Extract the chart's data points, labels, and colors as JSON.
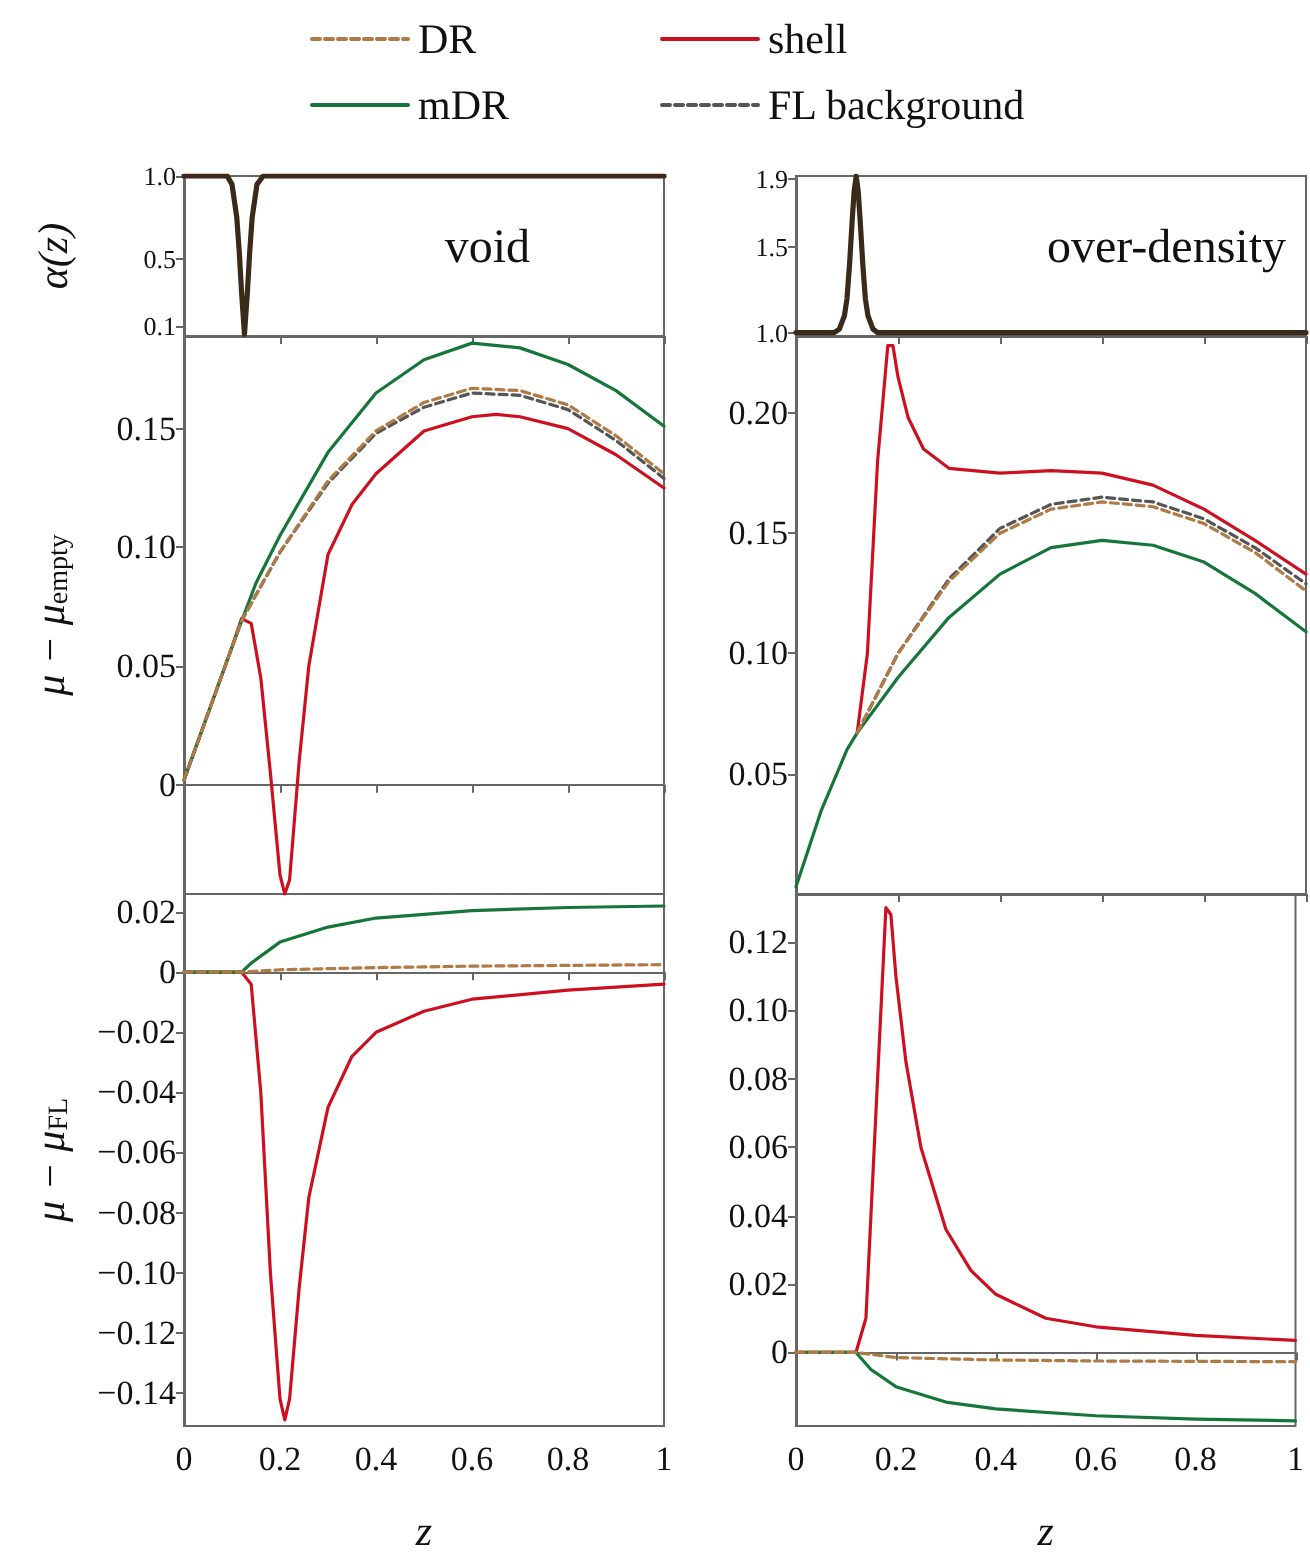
{
  "chart_data": [
    {
      "type": "line",
      "ylabel": "α(z)",
      "annotations": [
        "void"
      ],
      "tick_labels": "y",
      "xlim": [
        0,
        1
      ],
      "xticks": [
        0,
        0.2,
        0.4,
        0.6,
        0.8,
        1
      ],
      "ylim": [
        0.04,
        1
      ],
      "yticks": [
        0.1,
        0.5,
        {
          "value": 1,
          "label": "1.0"
        }
      ],
      "series": [
        {
          "color": "#3b2a1a",
          "x": [
            0,
            0.09,
            0.1,
            0.11,
            0.115,
            0.12,
            0.126,
            0.132,
            0.137,
            0.142,
            0.152,
            0.165,
            1
          ],
          "values": [
            1,
            1,
            0.95,
            0.75,
            0.55,
            0.3,
            0.05,
            0.3,
            0.55,
            0.75,
            0.95,
            1,
            1
          ]
        }
      ]
    },
    {
      "type": "line",
      "annotations": [
        "over-density"
      ],
      "tick_labels": "y",
      "xlim": [
        0,
        1
      ],
      "xticks": [
        0,
        0.2,
        0.4,
        0.6,
        0.8,
        1
      ],
      "ylim": [
        0.98,
        1.92
      ],
      "yticks": [
        {
          "value": 1,
          "label": "1.0"
        },
        1.5,
        1.9
      ],
      "series": [
        {
          "color": "#3b2a1a",
          "x": [
            0,
            0.075,
            0.085,
            0.095,
            0.1,
            0.105,
            0.11,
            0.114,
            0.118,
            0.122,
            0.126,
            0.131,
            0.136,
            0.141,
            0.151,
            0.16,
            1
          ],
          "values": [
            1,
            1,
            1.02,
            1.1,
            1.2,
            1.4,
            1.65,
            1.83,
            1.92,
            1.83,
            1.65,
            1.4,
            1.2,
            1.1,
            1.02,
            1,
            1
          ]
        }
      ]
    },
    {
      "type": "line",
      "ylabel": "μ − μ$_{empty}$",
      "legend": "top",
      "tick_labels": "y",
      "xlim": [
        0,
        1
      ],
      "xticks": [
        0,
        0.2,
        0.4,
        0.6,
        0.8,
        1
      ],
      "ylim": [
        -0.046,
        0.189
      ],
      "yticks": [
        0,
        0.05,
        {
          "value": 0.1,
          "label": "0.10"
        },
        0.15
      ],
      "series": [
        {
          "name": "DR",
          "color": "#b07a45",
          "line_style": "dashed",
          "x": [
            0,
            0.05,
            0.1,
            0.12,
            0.15,
            0.2,
            0.3,
            0.4,
            0.5,
            0.6,
            0.7,
            0.8,
            0.9,
            1
          ],
          "values": [
            0.002,
            0.03,
            0.058,
            0.069,
            0.08,
            0.098,
            0.128,
            0.149,
            0.161,
            0.167,
            0.166,
            0.16,
            0.147,
            0.131
          ]
        },
        {
          "name": "shell",
          "color": "#cc1020",
          "x": [
            0,
            0.05,
            0.1,
            0.12,
            0.14,
            0.16,
            0.18,
            0.2,
            0.21,
            0.22,
            0.24,
            0.26,
            0.3,
            0.35,
            0.4,
            0.5,
            0.6,
            0.65,
            0.7,
            0.8,
            0.9,
            1
          ],
          "values": [
            0.002,
            0.03,
            0.058,
            0.07,
            0.068,
            0.045,
            0.005,
            -0.038,
            -0.046,
            -0.04,
            0.01,
            0.05,
            0.097,
            0.118,
            0.131,
            0.149,
            0.155,
            0.156,
            0.155,
            0.15,
            0.139,
            0.125
          ]
        },
        {
          "name": "mDR",
          "color": "#16763a",
          "x": [
            0,
            0.05,
            0.1,
            0.12,
            0.15,
            0.2,
            0.3,
            0.4,
            0.5,
            0.6,
            0.7,
            0.8,
            0.9,
            1
          ],
          "values": [
            0.002,
            0.03,
            0.058,
            0.069,
            0.085,
            0.105,
            0.14,
            0.165,
            0.179,
            0.186,
            0.184,
            0.177,
            0.166,
            0.151
          ]
        },
        {
          "name": "FL background",
          "color": "#555555",
          "line_style": "dashed",
          "x": [
            0,
            0.05,
            0.1,
            0.12,
            0.15,
            0.2,
            0.3,
            0.4,
            0.5,
            0.6,
            0.7,
            0.8,
            0.9,
            1
          ],
          "values": [
            0.002,
            0.03,
            0.058,
            0.069,
            0.08,
            0.098,
            0.127,
            0.148,
            0.159,
            0.165,
            0.164,
            0.158,
            0.145,
            0.129
          ]
        }
      ]
    },
    {
      "type": "line",
      "tick_labels": "y",
      "xlim": [
        0,
        1
      ],
      "xticks": [
        0,
        0.2,
        0.4,
        0.6,
        0.8,
        1
      ],
      "ylim": [
        0,
        0.232
      ],
      "yticks": [
        0.05,
        {
          "value": 0.1,
          "label": "0.10"
        },
        0.15,
        {
          "value": 0.2,
          "label": "0.20"
        }
      ],
      "series": [
        {
          "color": "#b07a45",
          "line_style": "dashed",
          "x": [
            0.12,
            0.2,
            0.3,
            0.4,
            0.5,
            0.6,
            0.7,
            0.8,
            0.9,
            1
          ],
          "values": [
            0.067,
            0.1,
            0.13,
            0.15,
            0.16,
            0.163,
            0.161,
            0.154,
            0.142,
            0.126
          ]
        },
        {
          "color": "#cc1020",
          "x": [
            0.12,
            0.14,
            0.16,
            0.18,
            0.19,
            0.2,
            0.22,
            0.25,
            0.3,
            0.4,
            0.5,
            0.6,
            0.7,
            0.8,
            0.9,
            1
          ],
          "values": [
            0.067,
            0.1,
            0.18,
            0.228,
            0.228,
            0.215,
            0.198,
            0.185,
            0.177,
            0.175,
            0.176,
            0.175,
            0.17,
            0.16,
            0.147,
            0.133
          ]
        },
        {
          "color": "#16763a",
          "x": [
            0,
            0.05,
            0.1,
            0.12,
            0.2,
            0.3,
            0.4,
            0.5,
            0.6,
            0.7,
            0.8,
            0.9,
            1
          ],
          "values": [
            0.003,
            0.035,
            0.06,
            0.067,
            0.09,
            0.115,
            0.133,
            0.144,
            0.147,
            0.145,
            0.138,
            0.125,
            0.109
          ]
        },
        {
          "color": "#555555",
          "line_style": "dashed",
          "x": [
            0.12,
            0.2,
            0.3,
            0.4,
            0.5,
            0.6,
            0.7,
            0.8,
            0.9,
            1
          ],
          "values": [
            0.067,
            0.1,
            0.131,
            0.152,
            0.162,
            0.165,
            0.163,
            0.156,
            0.144,
            0.129
          ]
        }
      ]
    },
    {
      "type": "line",
      "ylabel": "μ − μ$_{FL}$",
      "xlabel": "z",
      "xlim": [
        0,
        1
      ],
      "xticks": [
        0,
        0.2,
        0.4,
        0.6,
        0.8,
        1
      ],
      "ylim": [
        -0.151,
        0.026
      ],
      "yticks": [
        {
          "value": -0.14,
          "label": "−0.14"
        },
        {
          "value": -0.12,
          "label": "−0.12"
        },
        {
          "value": -0.1,
          "label": "−0.10"
        },
        {
          "value": -0.08,
          "label": "−0.08"
        },
        {
          "value": -0.06,
          "label": "−0.06"
        },
        {
          "value": -0.04,
          "label": "−0.04"
        },
        {
          "value": -0.02,
          "label": "−0.02"
        },
        0,
        0.02
      ],
      "series": [
        {
          "color": "#b07a45",
          "line_style": "dashed",
          "x": [
            0,
            0.12,
            0.2,
            0.4,
            0.6,
            1
          ],
          "values": [
            0,
            0,
            0.0008,
            0.0015,
            0.002,
            0.0025
          ]
        },
        {
          "color": "#cc1020",
          "x": [
            0,
            0.12,
            0.14,
            0.16,
            0.18,
            0.2,
            0.21,
            0.22,
            0.24,
            0.26,
            0.3,
            0.35,
            0.4,
            0.5,
            0.6,
            0.8,
            1
          ],
          "values": [
            0,
            0,
            -0.004,
            -0.04,
            -0.1,
            -0.142,
            -0.149,
            -0.142,
            -0.105,
            -0.075,
            -0.045,
            -0.028,
            -0.02,
            -0.013,
            -0.009,
            -0.006,
            -0.004
          ]
        },
        {
          "color": "#16763a",
          "x": [
            0,
            0.12,
            0.14,
            0.2,
            0.3,
            0.4,
            0.6,
            0.8,
            1
          ],
          "values": [
            0,
            0,
            0.003,
            0.01,
            0.015,
            0.018,
            0.0205,
            0.0215,
            0.022
          ]
        }
      ]
    },
    {
      "type": "line",
      "xlabel": "z",
      "xlim": [
        0,
        1
      ],
      "xticks": [
        0,
        0.2,
        0.4,
        0.6,
        0.8,
        1
      ],
      "ylim": [
        -0.0215,
        0.134
      ],
      "yticks": [
        0,
        0.02,
        0.04,
        0.06,
        0.08,
        {
          "value": 0.1,
          "label": "0.10"
        },
        0.12
      ],
      "series": [
        {
          "color": "#b07a45",
          "line_style": "dashed",
          "x": [
            0,
            0.12,
            0.2,
            0.4,
            0.6,
            1
          ],
          "values": [
            0,
            0,
            -0.0015,
            -0.0022,
            -0.0025,
            -0.0027
          ]
        },
        {
          "color": "#cc1020",
          "x": [
            0,
            0.12,
            0.14,
            0.16,
            0.18,
            0.19,
            0.2,
            0.22,
            0.25,
            0.3,
            0.35,
            0.4,
            0.5,
            0.6,
            0.8,
            1
          ],
          "values": [
            0,
            0,
            0.01,
            0.07,
            0.13,
            0.128,
            0.11,
            0.085,
            0.06,
            0.036,
            0.024,
            0.017,
            0.01,
            0.0075,
            0.005,
            0.0035
          ]
        },
        {
          "color": "#16763a",
          "x": [
            0,
            0.12,
            0.15,
            0.2,
            0.3,
            0.4,
            0.6,
            0.8,
            1
          ],
          "values": [
            0,
            0,
            -0.005,
            -0.01,
            -0.0145,
            -0.0165,
            -0.0185,
            -0.0195,
            -0.02
          ]
        }
      ]
    }
  ]
}
